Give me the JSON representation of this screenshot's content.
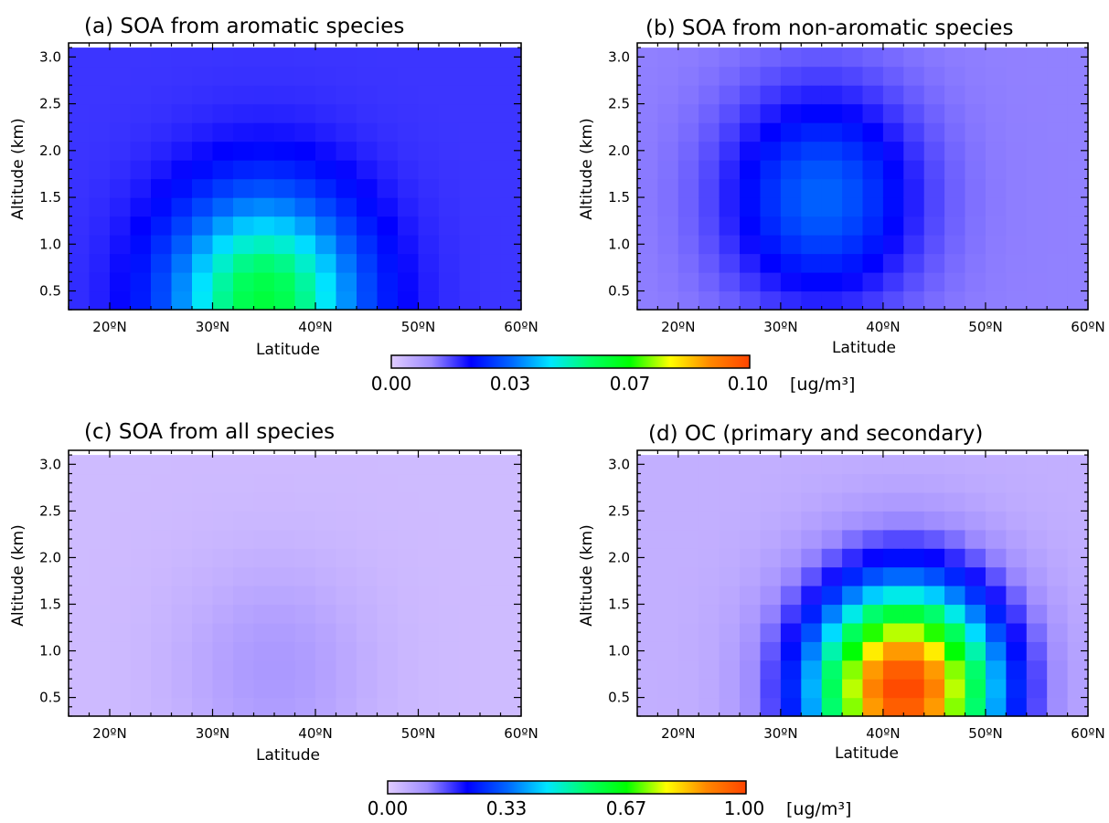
{
  "colorscale": [
    "#e0ccff",
    "#9e8cff",
    "#0000ff",
    "#0066ff",
    "#00e6ff",
    "#00ff66",
    "#00ff00",
    "#ffff00",
    "#ff8800",
    "#ff4400"
  ],
  "colorbars": [
    {
      "ticks": [
        "0.00",
        "0.03",
        "0.07",
        "0.10"
      ],
      "unit": "[ug/m³]"
    },
    {
      "ticks": [
        "0.00",
        "0.33",
        "0.67",
        "1.00"
      ],
      "unit": "[ug/m³]"
    }
  ],
  "chart_data": [
    {
      "type": "heatmap",
      "title": "(a) SOA from aromatic species",
      "xlabel": "Latitude",
      "ylabel": "Altitude (km)",
      "xlim": [
        16,
        60
      ],
      "ylim": [
        0.3,
        3.15
      ],
      "xticks": [
        "20ºN",
        "30ºN",
        "40ºN",
        "50ºN",
        "60ºN"
      ],
      "yticks": [
        "0.5",
        "1.0",
        "1.5",
        "2.0",
        "2.5",
        "3.0"
      ],
      "colorbar_range": [
        0,
        0.1
      ],
      "lat": [
        17,
        19,
        21,
        23,
        25,
        27,
        29,
        31,
        33,
        35,
        37,
        39,
        41,
        43,
        45,
        47,
        49,
        51,
        53,
        55,
        57,
        59
      ],
      "alt": [
        0.4,
        0.6,
        0.8,
        1.0,
        1.2,
        1.4,
        1.6,
        1.8,
        2.0,
        2.2,
        2.4,
        2.6,
        2.8,
        3.0
      ],
      "peak": {
        "lat": 35,
        "alt": 0.4,
        "value": 0.06
      },
      "background": 0.018
    },
    {
      "type": "heatmap",
      "title": "(b) SOA from non-aromatic species",
      "xlabel": "Latitude",
      "ylabel": "Altitude (km)",
      "xlim": [
        16,
        60
      ],
      "ylim": [
        0.3,
        3.15
      ],
      "xticks": [
        "20ºN",
        "30ºN",
        "40ºN",
        "50ºN",
        "60ºN"
      ],
      "yticks": [
        "0.5",
        "1.0",
        "1.5",
        "2.0",
        "2.5",
        "3.0"
      ],
      "colorbar_range": [
        0,
        0.1
      ],
      "lat": [
        17,
        19,
        21,
        23,
        25,
        27,
        29,
        31,
        33,
        35,
        37,
        39,
        41,
        43,
        45,
        47,
        49,
        51,
        53,
        55,
        57,
        59
      ],
      "alt": [
        0.4,
        0.6,
        0.8,
        1.0,
        1.2,
        1.4,
        1.6,
        1.8,
        2.0,
        2.2,
        2.4,
        2.6,
        2.8,
        3.0
      ],
      "peak": {
        "lat": 34,
        "alt": 1.5,
        "value": 0.033
      },
      "background": 0.012
    },
    {
      "type": "heatmap",
      "title": "(c) SOA from all species",
      "xlabel": "Latitude",
      "ylabel": "Altitude (km)",
      "xlim": [
        16,
        60
      ],
      "ylim": [
        0.3,
        3.15
      ],
      "xticks": [
        "20ºN",
        "30ºN",
        "40ºN",
        "50ºN",
        "60ºN"
      ],
      "yticks": [
        "0.5",
        "1.0",
        "1.5",
        "2.0",
        "2.5",
        "3.0"
      ],
      "colorbar_range": [
        0,
        1.0
      ],
      "lat": [
        17,
        19,
        21,
        23,
        25,
        27,
        29,
        31,
        33,
        35,
        37,
        39,
        41,
        43,
        45,
        47,
        49,
        51,
        53,
        55,
        57,
        59
      ],
      "alt": [
        0.4,
        0.6,
        0.8,
        1.0,
        1.2,
        1.4,
        1.6,
        1.8,
        2.0,
        2.2,
        2.4,
        2.6,
        2.8,
        3.0
      ],
      "peak": {
        "lat": 36,
        "alt": 0.8,
        "value": 0.09
      },
      "background": 0.03
    },
    {
      "type": "heatmap",
      "title": "(d) OC (primary and secondary)",
      "xlabel": "Latitude",
      "ylabel": "Altitude (km)",
      "xlim": [
        16,
        60
      ],
      "ylim": [
        0.3,
        3.15
      ],
      "xticks": [
        "20ºN",
        "30ºN",
        "40ºN",
        "50ºN",
        "60ºN"
      ],
      "yticks": [
        "0.5",
        "1.0",
        "1.5",
        "2.0",
        "2.5",
        "3.0"
      ],
      "colorbar_range": [
        0,
        1.0
      ],
      "lat": [
        17,
        19,
        21,
        23,
        25,
        27,
        29,
        31,
        33,
        35,
        37,
        39,
        41,
        43,
        45,
        47,
        49,
        51,
        53,
        55,
        57,
        59
      ],
      "alt": [
        0.4,
        0.6,
        0.8,
        1.0,
        1.2,
        1.4,
        1.6,
        1.8,
        2.0,
        2.2,
        2.4,
        2.6,
        2.8,
        3.0
      ],
      "peak": {
        "lat": 42,
        "alt": 0.6,
        "value": 1.0
      },
      "background": 0.05
    }
  ]
}
